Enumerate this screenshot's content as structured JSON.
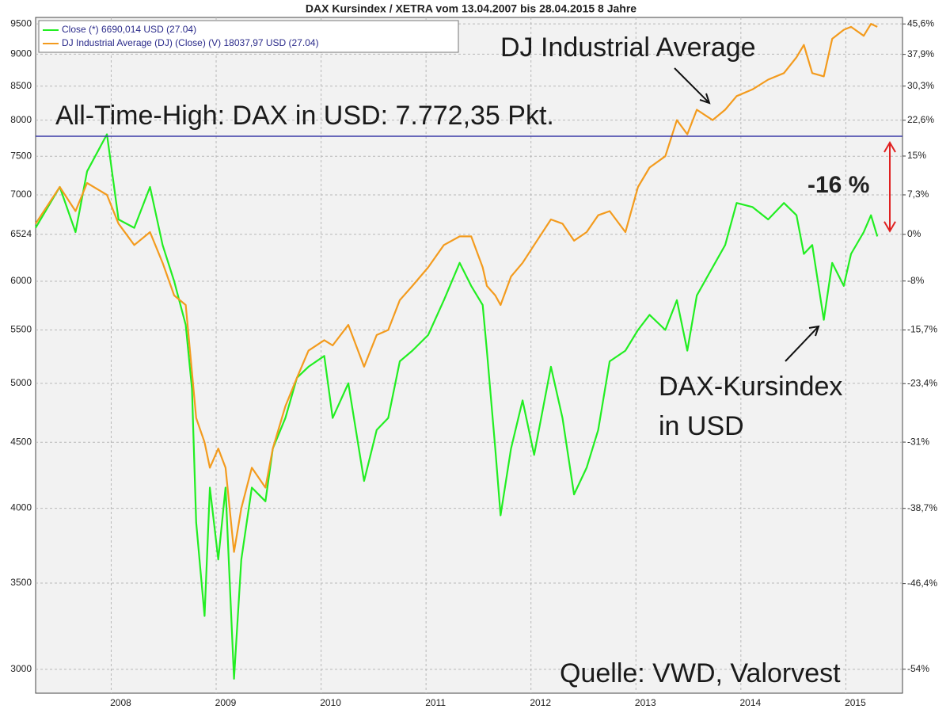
{
  "chart_data": {
    "type": "line",
    "title": "DAX Kursindex / XETRA vom 13.04.2007 bis 28.04.2015 8 Jahre",
    "log": true,
    "grid": true,
    "legend": "top-left",
    "x": [
      2007.28,
      2007.51,
      2007.66,
      2007.77,
      2007.96,
      2008.07,
      2008.22,
      2008.37,
      2008.49,
      2008.6,
      2008.71,
      2008.77,
      2008.81,
      2008.89,
      2008.94,
      2009.02,
      2009.09,
      2009.17,
      2009.24,
      2009.34,
      2009.47,
      2009.54,
      2009.66,
      2009.77,
      2009.88,
      2010.03,
      2010.11,
      2010.26,
      2010.41,
      2010.53,
      2010.64,
      2010.75,
      2010.87,
      2011.02,
      2011.17,
      2011.32,
      2011.43,
      2011.54,
      2011.58,
      2011.66,
      2011.71,
      2011.81,
      2011.92,
      2012.03,
      2012.19,
      2012.3,
      2012.41,
      2012.53,
      2012.64,
      2012.75,
      2012.9,
      2013.02,
      2013.13,
      2013.28,
      2013.39,
      2013.49,
      2013.58,
      2013.73,
      2013.85,
      2013.96,
      2014.11,
      2014.26,
      2014.41,
      2014.53,
      2014.6,
      2014.68,
      2014.79,
      2014.87,
      2014.98,
      2015.05,
      2015.17,
      2015.24,
      2015.3
    ],
    "xlim": [
      2007.28,
      2015.54
    ],
    "xticks": [
      2008,
      2009,
      2010,
      2011,
      2012,
      2013,
      2014,
      2015
    ],
    "series": [
      {
        "name": "Close (*) 6690,014 USD (27.04)",
        "color": "#22ee22",
        "values": [
          6600,
          7100,
          6550,
          7300,
          7800,
          6700,
          6600,
          7100,
          6400,
          6000,
          5550,
          4950,
          3900,
          3300,
          4150,
          3650,
          4150,
          2950,
          3650,
          4150,
          4050,
          4450,
          4700,
          5050,
          5150,
          5250,
          4700,
          5000,
          4200,
          4600,
          4700,
          5200,
          5300,
          5450,
          5800,
          6200,
          5950,
          5750,
          5300,
          4450,
          3950,
          4450,
          4850,
          4400,
          5150,
          4700,
          4100,
          4300,
          4600,
          5200,
          5300,
          5500,
          5650,
          5500,
          5800,
          5300,
          5850,
          6150,
          6400,
          6900,
          6850,
          6700,
          6900,
          6750,
          6300,
          6400,
          5600,
          6200,
          5950,
          6300,
          6550,
          6750,
          6500
        ]
      },
      {
        "name": "DJ Industrial Average (DJ) (Close) (V) 18037,97 USD (27.04)",
        "color": "#f39b1e",
        "values": [
          6650,
          7100,
          6800,
          7150,
          7000,
          6650,
          6400,
          6550,
          6200,
          5850,
          5750,
          5100,
          4700,
          4500,
          4300,
          4450,
          4300,
          3700,
          4000,
          4300,
          4150,
          4450,
          4800,
          5050,
          5300,
          5400,
          5350,
          5550,
          5150,
          5450,
          5500,
          5800,
          5950,
          6150,
          6400,
          6500,
          6500,
          6150,
          5950,
          5850,
          5750,
          6050,
          6200,
          6400,
          6700,
          6650,
          6450,
          6550,
          6750,
          6800,
          6550,
          7100,
          7350,
          7500,
          8000,
          7800,
          8150,
          8000,
          8150,
          8350,
          8450,
          8600,
          8700,
          8950,
          9150,
          8700,
          8650,
          9250,
          9400,
          9450,
          9300,
          9500,
          9450
        ]
      }
    ],
    "ylim": [
      2875,
      9610
    ],
    "yticks": [
      3000,
      3500,
      4000,
      4500,
      5000,
      5500,
      6000,
      6524,
      7000,
      7500,
      8000,
      8500,
      9000,
      9500
    ],
    "y2lim": [
      -55.93,
      47.3
    ],
    "y2ticks": [
      {
        "value": 45.6,
        "label": "45,6%"
      },
      {
        "value": 37.9,
        "label": "37,9%"
      },
      {
        "value": 30.3,
        "label": "30,3%"
      },
      {
        "value": 22.6,
        "label": "22,6%"
      },
      {
        "value": 15,
        "label": "15%"
      },
      {
        "value": 7.3,
        "label": "7,3%"
      },
      {
        "value": 0,
        "label": "0%"
      },
      {
        "value": -8,
        "label": "-8%"
      },
      {
        "value": -15.7,
        "label": "-15,7%"
      },
      {
        "value": -23.4,
        "label": "-23,4%"
      },
      {
        "value": -31,
        "label": "-31%"
      },
      {
        "value": -38.7,
        "label": "-38,7%"
      },
      {
        "value": -46.4,
        "label": "-46,4%"
      },
      {
        "value": -54,
        "label": "-54%"
      }
    ],
    "ath_line": {
      "value": 7772.35,
      "label": "All-Time-High: DAX in USD: 7.772,35 Pkt.",
      "color": "#3a3aa8"
    },
    "gap_label": {
      "label": "-16 %",
      "color": "#e02020"
    },
    "annotations": [
      "DJ Industrial Average",
      [
        "DAX-Kursindex",
        "in USD"
      ],
      "Quelle: VWD, Valorvest"
    ]
  }
}
